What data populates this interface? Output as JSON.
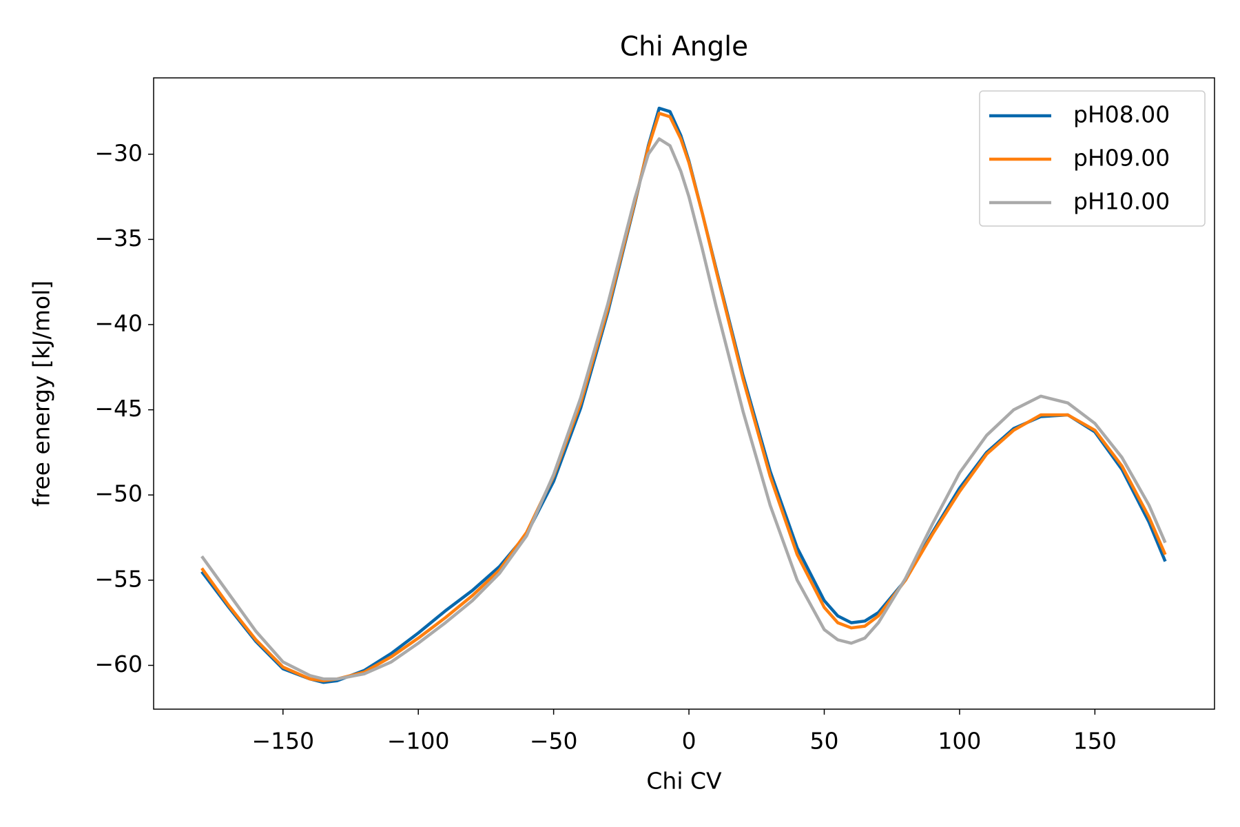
{
  "chart_data": {
    "type": "line",
    "title": "Chi Angle",
    "xlabel": "Chi CV",
    "ylabel": "free energy [kJ/mol]",
    "x": [
      -180,
      -170,
      -160,
      -150,
      -140,
      -135,
      -130,
      -120,
      -110,
      -100,
      -90,
      -80,
      -70,
      -60,
      -50,
      -40,
      -30,
      -20,
      -15,
      -11,
      -7,
      -3,
      0,
      5,
      10,
      20,
      30,
      40,
      50,
      55,
      60,
      65,
      70,
      80,
      90,
      100,
      110,
      120,
      130,
      140,
      150,
      160,
      170,
      176
    ],
    "series": [
      {
        "name": "pH08.00",
        "color": "#0868ac",
        "values": [
          -54.5,
          -56.6,
          -58.6,
          -60.2,
          -60.8,
          -61.0,
          -60.9,
          -60.3,
          -59.3,
          -58.1,
          -56.8,
          -55.6,
          -54.2,
          -52.3,
          -49.2,
          -44.9,
          -39.3,
          -32.9,
          -29.5,
          -27.3,
          -27.5,
          -28.9,
          -30.4,
          -33.5,
          -36.7,
          -43.0,
          -48.6,
          -53.1,
          -56.2,
          -57.1,
          -57.5,
          -57.4,
          -56.9,
          -55.0,
          -52.2,
          -49.6,
          -47.5,
          -46.1,
          -45.4,
          -45.3,
          -46.3,
          -48.5,
          -51.6,
          -53.9
        ]
      },
      {
        "name": "pH09.00",
        "color": "#ff7f0e",
        "values": [
          -54.3,
          -56.5,
          -58.5,
          -60.1,
          -60.8,
          -60.9,
          -60.8,
          -60.4,
          -59.5,
          -58.4,
          -57.2,
          -55.9,
          -54.4,
          -52.2,
          -48.9,
          -44.6,
          -39.1,
          -32.8,
          -29.6,
          -27.6,
          -27.8,
          -29.1,
          -30.5,
          -33.5,
          -36.8,
          -43.2,
          -48.9,
          -53.5,
          -56.6,
          -57.5,
          -57.8,
          -57.7,
          -57.1,
          -55.0,
          -52.3,
          -49.8,
          -47.6,
          -46.2,
          -45.3,
          -45.3,
          -46.2,
          -48.3,
          -51.3,
          -53.5
        ]
      },
      {
        "name": "pH10.00",
        "color": "#aaaaaa",
        "values": [
          -53.6,
          -55.8,
          -58.0,
          -59.8,
          -60.6,
          -60.8,
          -60.8,
          -60.5,
          -59.8,
          -58.7,
          -57.5,
          -56.2,
          -54.6,
          -52.4,
          -48.8,
          -44.3,
          -38.8,
          -32.6,
          -30.0,
          -29.1,
          -29.5,
          -31.0,
          -32.5,
          -35.6,
          -38.9,
          -45.1,
          -50.6,
          -55.0,
          -57.9,
          -58.5,
          -58.7,
          -58.4,
          -57.5,
          -54.9,
          -51.7,
          -48.7,
          -46.5,
          -45.0,
          -44.2,
          -44.6,
          -45.8,
          -47.8,
          -50.6,
          -52.8
        ]
      }
    ],
    "xlim": [
      -197.8,
      194.2
    ],
    "ylim": [
      -62.57,
      -25.52
    ],
    "xticks": [
      {
        "value": -150,
        "label": "−150"
      },
      {
        "value": -100,
        "label": "−100"
      },
      {
        "value": -50,
        "label": "−50"
      },
      0,
      50,
      100,
      150
    ],
    "yticks": [
      {
        "value": -60,
        "label": "−60"
      },
      {
        "value": -55,
        "label": "−55"
      },
      {
        "value": -50,
        "label": "−50"
      },
      {
        "value": -45,
        "label": "−45"
      },
      {
        "value": -40,
        "label": "−40"
      },
      {
        "value": -35,
        "label": "−35"
      },
      {
        "value": -30,
        "label": "−30"
      }
    ],
    "legend": "upper right"
  }
}
